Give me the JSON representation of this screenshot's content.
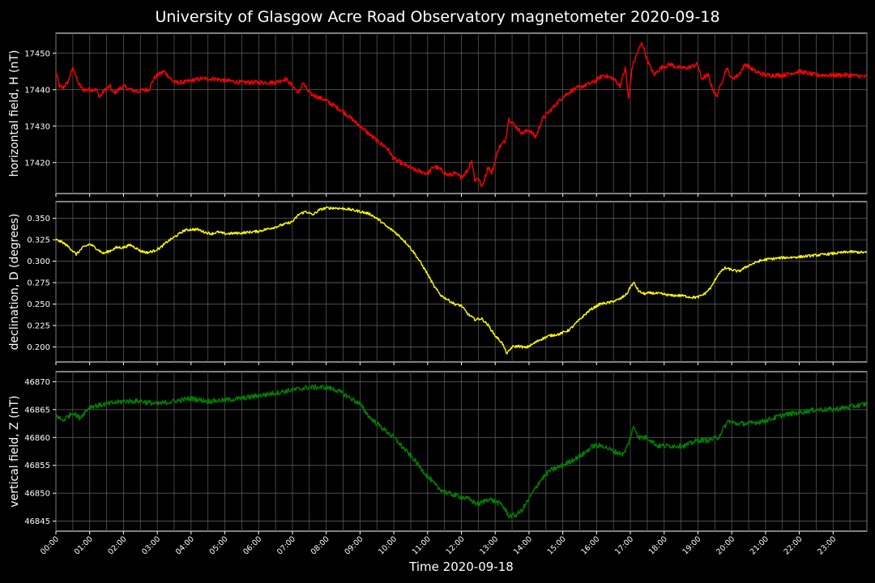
{
  "chart_data": {
    "title": "University of Glasgow Acre Road Observatory magnetometer 2020-09-18",
    "xlabel": "Time 2020-09-18",
    "type": "line",
    "x_ticks": [
      "00:00",
      "01:00",
      "02:00",
      "03:00",
      "04:00",
      "05:00",
      "06:00",
      "07:00",
      "08:00",
      "09:00",
      "10:00",
      "11:00",
      "12:00",
      "13:00",
      "14:00",
      "15:00",
      "16:00",
      "17:00",
      "18:00",
      "19:00",
      "20:00",
      "21:00",
      "22:00",
      "23:00"
    ],
    "xlim": [
      0,
      24
    ],
    "grid": true,
    "panels": [
      {
        "ylabel": "horizontal field, H (nT)",
        "color": "#ff0000",
        "ylim": [
          17411.5,
          17455.5
        ],
        "yticks": [
          17420,
          17430,
          17440,
          17450
        ],
        "ytick_labels": [
          "17420",
          "17430",
          "17440",
          "17450"
        ],
        "noise": 0.6,
        "x": [
          0,
          0.1,
          0.2,
          0.35,
          0.5,
          0.55,
          0.65,
          0.8,
          1.0,
          1.2,
          1.3,
          1.45,
          1.6,
          1.7,
          2.0,
          2.2,
          2.45,
          2.6,
          2.75,
          2.9,
          3.0,
          3.2,
          3.3,
          3.5,
          3.8,
          4.0,
          4.3,
          4.7,
          5.0,
          5.5,
          6.0,
          6.5,
          6.8,
          7.0,
          7.2,
          7.3,
          7.5,
          8.0,
          8.5,
          9.0,
          9.5,
          9.8,
          10.0,
          10.3,
          10.6,
          11.0,
          11.2,
          11.4,
          11.6,
          11.8,
          12.0,
          12.2,
          12.3,
          12.4,
          12.5,
          12.6,
          12.7,
          12.8,
          12.9,
          13.1,
          13.3,
          13.4,
          13.6,
          13.8,
          14.0,
          14.2,
          14.4,
          14.6,
          14.8,
          15.0,
          15.3,
          15.6,
          15.9,
          16.2,
          16.5,
          16.7,
          16.85,
          16.95,
          17.05,
          17.2,
          17.35,
          17.5,
          17.7,
          17.9,
          18.2,
          18.4,
          18.7,
          19.0,
          19.1,
          19.3,
          19.4,
          19.55,
          19.7,
          19.85,
          20.0,
          20.2,
          20.4,
          20.7,
          21.0,
          21.5,
          22.0,
          22.5,
          23.0,
          23.5,
          24
        ],
        "y": [
          17445,
          17441,
          17440.5,
          17442,
          17446,
          17445,
          17442,
          17440,
          17440,
          17440,
          17438,
          17440,
          17441,
          17439,
          17441,
          17440,
          17439.5,
          17440,
          17440,
          17443,
          17444,
          17445,
          17444,
          17442,
          17442,
          17442.5,
          17443,
          17443,
          17442.5,
          17442,
          17442,
          17442,
          17443,
          17441,
          17439,
          17442,
          17439,
          17437,
          17434,
          17430,
          17426,
          17424,
          17421,
          17419.5,
          17418,
          17417,
          17419,
          17418,
          17416.5,
          17417,
          17416,
          17418,
          17421,
          17415,
          17416,
          17413,
          17416,
          17419,
          17417,
          17424,
          17426,
          17432,
          17430,
          17428,
          17429,
          17427,
          17432,
          17434,
          17436,
          17438,
          17440,
          17441,
          17442,
          17444,
          17443,
          17441,
          17446,
          17437,
          17446,
          17450,
          17453,
          17448,
          17444,
          17446,
          17447,
          17446,
          17446,
          17447,
          17443,
          17444,
          17441,
          17438,
          17442,
          17446,
          17443,
          17444,
          17447,
          17445,
          17444,
          17444,
          17445,
          17444,
          17444,
          17444,
          17443.5
        ]
      },
      {
        "ylabel": "declination, D (degrees)",
        "color": "#ffff00",
        "ylim": [
          0.1825,
          0.3695
        ],
        "yticks": [
          0.2,
          0.225,
          0.25,
          0.275,
          0.3,
          0.325,
          0.35
        ],
        "ytick_labels": [
          "0.200",
          "0.225",
          "0.250",
          "0.275",
          "0.300",
          "0.325",
          "0.350"
        ],
        "noise": 0.0015,
        "x": [
          0,
          0.2,
          0.4,
          0.6,
          0.8,
          1.0,
          1.2,
          1.4,
          1.6,
          1.8,
          2.0,
          2.2,
          2.35,
          2.5,
          2.7,
          2.9,
          3.1,
          3.3,
          3.5,
          3.8,
          4.0,
          4.2,
          4.4,
          4.6,
          4.8,
          5.0,
          5.5,
          6.0,
          6.5,
          7.0,
          7.2,
          7.4,
          7.6,
          7.8,
          8.0,
          8.3,
          8.6,
          9.0,
          9.3,
          9.6,
          9.8,
          10.0,
          10.2,
          10.4,
          10.6,
          10.8,
          11.0,
          11.2,
          11.4,
          11.6,
          11.8,
          12.0,
          12.2,
          12.4,
          12.6,
          12.8,
          13.0,
          13.2,
          13.35,
          13.5,
          13.7,
          13.9,
          14.1,
          14.3,
          14.6,
          14.9,
          15.2,
          15.5,
          15.8,
          16.1,
          16.4,
          16.7,
          16.9,
          17.0,
          17.1,
          17.25,
          17.4,
          17.6,
          17.9,
          18.2,
          18.5,
          18.8,
          19.0,
          19.2,
          19.4,
          19.6,
          19.8,
          20.0,
          20.2,
          20.5,
          20.8,
          21.0,
          21.5,
          22.0,
          22.5,
          23.0,
          23.5,
          24
        ],
        "y": [
          0.325,
          0.322,
          0.316,
          0.308,
          0.316,
          0.32,
          0.315,
          0.309,
          0.312,
          0.316,
          0.316,
          0.319,
          0.316,
          0.312,
          0.31,
          0.312,
          0.316,
          0.323,
          0.328,
          0.336,
          0.337,
          0.337,
          0.334,
          0.332,
          0.334,
          0.332,
          0.333,
          0.335,
          0.34,
          0.346,
          0.355,
          0.358,
          0.354,
          0.36,
          0.362,
          0.362,
          0.361,
          0.358,
          0.355,
          0.347,
          0.34,
          0.335,
          0.328,
          0.32,
          0.31,
          0.298,
          0.285,
          0.27,
          0.26,
          0.255,
          0.25,
          0.248,
          0.238,
          0.232,
          0.233,
          0.225,
          0.213,
          0.205,
          0.192,
          0.2,
          0.201,
          0.199,
          0.203,
          0.208,
          0.213,
          0.215,
          0.22,
          0.232,
          0.243,
          0.25,
          0.252,
          0.256,
          0.262,
          0.27,
          0.275,
          0.265,
          0.262,
          0.263,
          0.262,
          0.26,
          0.26,
          0.258,
          0.258,
          0.262,
          0.27,
          0.285,
          0.292,
          0.29,
          0.288,
          0.295,
          0.3,
          0.302,
          0.304,
          0.305,
          0.307,
          0.309,
          0.311,
          0.31
        ]
      },
      {
        "ylabel": "vertical field, Z (nT)",
        "color": "#008000",
        "ylim": [
          46843.2,
          46871.8
        ],
        "yticks": [
          46845,
          46850,
          46855,
          46860,
          46865,
          46870
        ],
        "ytick_labels": [
          "46845",
          "46850",
          "46855",
          "46860",
          "46865",
          "46870"
        ],
        "noise": 0.45,
        "x": [
          0,
          0.2,
          0.4,
          0.5,
          0.7,
          1.0,
          1.5,
          2.0,
          2.5,
          3.0,
          3.5,
          4.0,
          4.5,
          5.0,
          5.5,
          6.0,
          6.5,
          7.0,
          7.5,
          8.0,
          8.3,
          8.6,
          9.0,
          9.3,
          9.6,
          10.0,
          10.3,
          10.6,
          11.0,
          11.3,
          11.6,
          11.9,
          12.2,
          12.5,
          12.8,
          13.0,
          13.2,
          13.4,
          13.6,
          13.8,
          14.0,
          14.3,
          14.6,
          15.0,
          15.3,
          15.6,
          15.9,
          16.2,
          16.5,
          16.8,
          16.95,
          17.1,
          17.25,
          17.5,
          17.8,
          18.2,
          18.6,
          19.0,
          19.3,
          19.6,
          19.8,
          19.9,
          20.1,
          20.5,
          21.0,
          21.5,
          22.0,
          22.5,
          23.0,
          23.5,
          24
        ],
        "y": [
          46864,
          46863,
          46864,
          46864.5,
          46863.5,
          46865.5,
          46866,
          46866.5,
          46866.5,
          46866,
          46866.5,
          46867,
          46866.5,
          46866.7,
          46867,
          46867.5,
          46868,
          46868.5,
          46869,
          46869,
          46868.5,
          46867.5,
          46866,
          46863.5,
          46862,
          46860,
          46858,
          46856,
          46853,
          46851,
          46850,
          46849.5,
          46849,
          46848,
          46849,
          46848.5,
          46848,
          46846,
          46846,
          46847,
          46849,
          46852,
          46854,
          46855,
          46856,
          46857,
          46858.5,
          46858.5,
          46857.5,
          46857,
          46859,
          46862,
          46860,
          46860,
          46858.5,
          46858.5,
          46858.5,
          46859.5,
          46859.5,
          46860,
          46862,
          46863,
          46862.5,
          46862.5,
          46863,
          46864,
          46864.5,
          46865,
          46865,
          46865.5,
          46866
        ]
      }
    ]
  }
}
